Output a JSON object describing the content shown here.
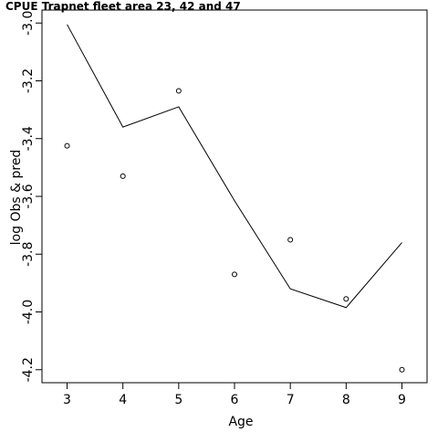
{
  "chart_data": {
    "type": "line",
    "title": "CPUE Trapnet fleet area 23, 42 and 47",
    "xlabel": "Age",
    "ylabel": "log Obs & pred",
    "xlim": [
      2.55,
      9.45
    ],
    "ylim": [
      -4.245,
      -2.955
    ],
    "xticks": [
      3,
      4,
      5,
      6,
      7,
      8,
      9
    ],
    "xtick_labels": [
      "3",
      "4",
      "5",
      "6",
      "7",
      "8",
      "9"
    ],
    "yticks": [
      -3.0,
      -3.2,
      -3.4,
      -3.6,
      -3.8,
      -4.0,
      -4.2
    ],
    "ytick_labels": [
      "-3.0",
      "-3.2",
      "-3.4",
      "-3.6",
      "-3.8",
      "-4.0",
      "-4.2"
    ],
    "grid": false,
    "series": [
      {
        "kind": "line",
        "x": [
          3,
          4,
          5,
          6,
          7,
          8,
          9
        ],
        "values": [
          -3.005,
          -3.36,
          -3.29,
          -3.615,
          -3.92,
          -3.985,
          -3.76
        ]
      },
      {
        "kind": "points",
        "x": [
          3,
          4,
          5,
          6,
          7,
          8,
          9
        ],
        "values": [
          -3.425,
          -3.53,
          -3.235,
          -3.87,
          -3.75,
          -3.955,
          -4.2
        ]
      }
    ],
    "colors": {
      "line": "#000000",
      "points": "#000000",
      "axis": "#000000"
    }
  }
}
